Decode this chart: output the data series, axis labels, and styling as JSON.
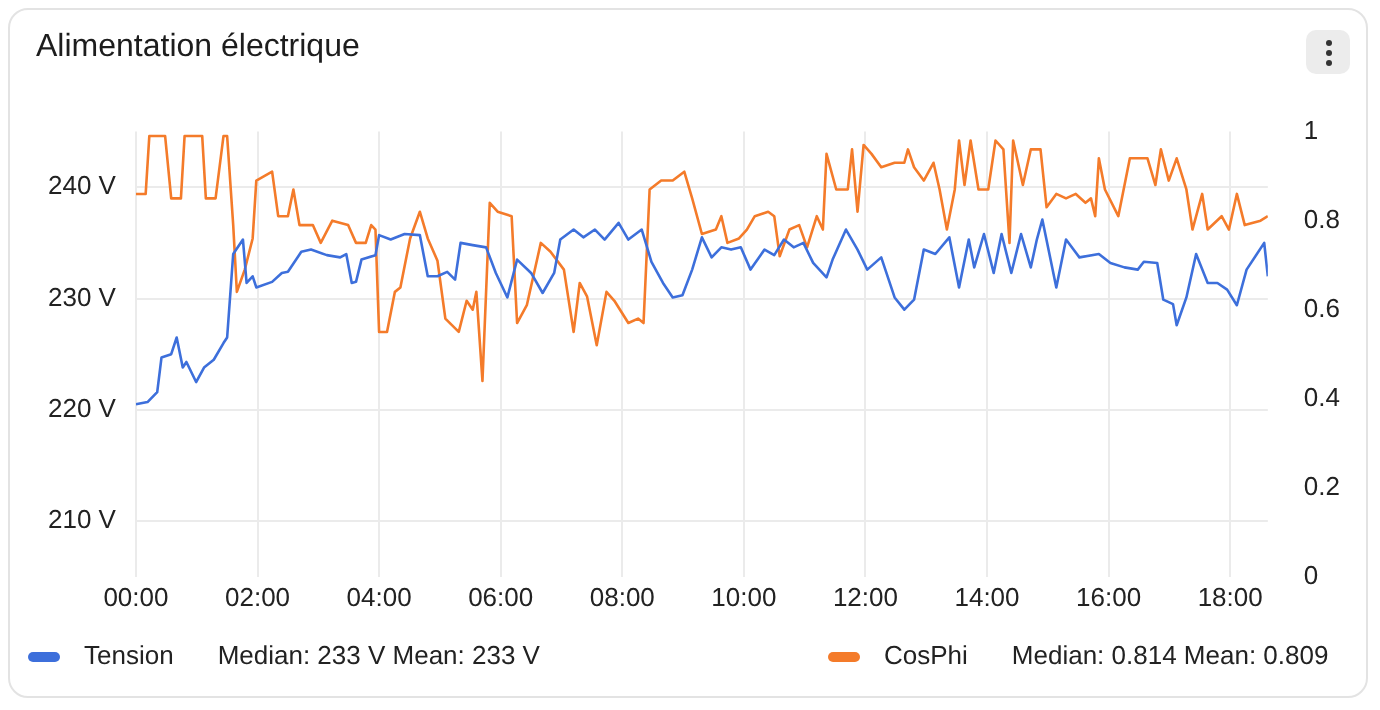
{
  "chart_data": {
    "type": "line",
    "title": "Alimentation électrique",
    "xlim": [
      0,
      18.62
    ],
    "xticks": [
      {
        "value": 0,
        "label": "00:00"
      },
      {
        "value": 2,
        "label": "02:00"
      },
      {
        "value": 4,
        "label": "04:00"
      },
      {
        "value": 6,
        "label": "06:00"
      },
      {
        "value": 8,
        "label": "08:00"
      },
      {
        "value": 10,
        "label": "10:00"
      },
      {
        "value": 12,
        "label": "12:00"
      },
      {
        "value": 14,
        "label": "14:00"
      },
      {
        "value": 16,
        "label": "16:00"
      },
      {
        "value": 18,
        "label": "18:00"
      }
    ],
    "ylim": [
      205,
      245
    ],
    "yticks": [
      {
        "value": 210,
        "label": "210 V"
      },
      {
        "value": 220,
        "label": "220 V"
      },
      {
        "value": 230,
        "label": "230 V"
      },
      {
        "value": 240,
        "label": "240 V"
      }
    ],
    "y2lim": [
      0,
      1
    ],
    "y2ticks": [
      0,
      0.2,
      0.4,
      0.6,
      0.8,
      1
    ],
    "grid": true,
    "legend": "bottom",
    "marker": "none",
    "line_style": "solid",
    "annotations": [
      "Median: 233 V  Mean: 233 V",
      "Median: 0.814  Mean: 0.809"
    ],
    "series": [
      {
        "name": "Tension",
        "color": "#3d6fdb",
        "x": [
          0,
          0.19,
          0.35,
          0.42,
          0.58,
          0.67,
          0.77,
          0.83,
          0.99,
          1.12,
          1.28,
          1.44,
          1.5,
          1.6,
          1.76,
          1.82,
          1.92,
          1.98,
          2.24,
          2.4,
          2.5,
          2.72,
          2.88,
          3.14,
          3.36,
          3.46,
          3.55,
          3.62,
          3.71,
          3.94,
          4,
          4.19,
          4.42,
          4.67,
          4.8,
          4.96,
          5.12,
          5.25,
          5.34,
          5.54,
          5.76,
          5.92,
          6.11,
          6.27,
          6.5,
          6.69,
          6.88,
          6.98,
          7.2,
          7.36,
          7.55,
          7.71,
          7.94,
          8.1,
          8.32,
          8.48,
          8.67,
          8.83,
          8.99,
          9.15,
          9.31,
          9.47,
          9.63,
          9.79,
          9.95,
          10.11,
          10.34,
          10.5,
          10.66,
          10.82,
          10.98,
          11.14,
          11.36,
          11.46,
          11.68,
          11.87,
          12.03,
          12.26,
          12.48,
          12.64,
          12.8,
          12.96,
          13.15,
          13.38,
          13.54,
          13.7,
          13.79,
          13.95,
          14.11,
          14.24,
          14.4,
          14.56,
          14.72,
          14.82,
          14.91,
          15.14,
          15.3,
          15.52,
          15.84,
          16.03,
          16.26,
          16.48,
          16.58,
          16.8,
          16.9,
          17.06,
          17.12,
          17.28,
          17.44,
          17.63,
          17.79,
          17.95,
          18.11,
          18.27,
          18.56,
          18.62
        ],
        "values": [
          220.5,
          220.7,
          221.6,
          224.7,
          225,
          226.5,
          223.8,
          224.3,
          222.5,
          223.8,
          224.5,
          226,
          226.5,
          234,
          235.3,
          231.4,
          232,
          231,
          231.5,
          232.3,
          232.4,
          234.2,
          234.4,
          233.9,
          233.7,
          234,
          231.4,
          231.5,
          233.5,
          233.9,
          235.7,
          235.3,
          235.8,
          235.7,
          232,
          232,
          232.4,
          231.7,
          235,
          234.8,
          234.6,
          232.3,
          230.1,
          233.5,
          232.3,
          230.5,
          232.3,
          235.3,
          236.2,
          235.5,
          236.2,
          235.3,
          236.8,
          235.3,
          236.2,
          233.3,
          231.4,
          230.1,
          230.3,
          232.6,
          235.5,
          233.7,
          234.6,
          234.4,
          234.6,
          232.6,
          234.4,
          233.9,
          235.3,
          234.6,
          235,
          233.2,
          231.9,
          233.5,
          236.2,
          234.4,
          232.6,
          233.7,
          230.1,
          229,
          229.9,
          234.4,
          234,
          235.5,
          231,
          235.3,
          232.8,
          235.8,
          232.3,
          235.8,
          232.3,
          235.8,
          232.8,
          235.3,
          237.1,
          231,
          235.3,
          233.7,
          234,
          233.2,
          232.8,
          232.6,
          233.3,
          233.2,
          229.9,
          229.5,
          227.6,
          230.1,
          234,
          231.4,
          231.4,
          230.8,
          229.4,
          232.6,
          235,
          232
        ]
      },
      {
        "name": "CosPhi",
        "color": "#f47b2a",
        "axis": "y2",
        "x": [
          0,
          0.16,
          0.22,
          0.48,
          0.58,
          0.74,
          0.8,
          1.09,
          1.15,
          1.31,
          1.44,
          1.5,
          1.6,
          1.66,
          1.79,
          1.92,
          1.98,
          2.24,
          2.34,
          2.5,
          2.59,
          2.69,
          2.91,
          3.04,
          3.23,
          3.49,
          3.62,
          3.78,
          3.87,
          3.94,
          4,
          4.13,
          4.26,
          4.35,
          4.51,
          4.67,
          4.8,
          4.96,
          5.09,
          5.31,
          5.44,
          5.54,
          5.6,
          5.7,
          5.82,
          5.95,
          6.18,
          6.27,
          6.43,
          6.66,
          6.82,
          7.04,
          7.2,
          7.3,
          7.42,
          7.58,
          7.74,
          7.87,
          8.1,
          8.26,
          8.35,
          8.45,
          8.64,
          8.83,
          9.02,
          9.15,
          9.31,
          9.54,
          9.63,
          9.73,
          9.92,
          10.05,
          10.18,
          10.4,
          10.5,
          10.59,
          10.75,
          10.91,
          11.04,
          11.2,
          11.3,
          11.36,
          11.52,
          11.71,
          11.78,
          11.87,
          11.97,
          12.1,
          12.26,
          12.48,
          12.64,
          12.7,
          12.8,
          12.96,
          13.12,
          13.22,
          13.34,
          13.47,
          13.54,
          13.63,
          13.73,
          13.86,
          14.02,
          14.14,
          14.27,
          14.37,
          14.43,
          14.59,
          14.72,
          14.88,
          14.98,
          15.14,
          15.3,
          15.46,
          15.62,
          15.71,
          15.78,
          15.84,
          15.94,
          16.16,
          16.35,
          16.64,
          16.77,
          16.86,
          16.99,
          17.12,
          17.28,
          17.38,
          17.54,
          17.63,
          17.86,
          17.98,
          18.11,
          18.24,
          18.5,
          18.62
        ],
        "values": [
          0.86,
          0.86,
          0.99,
          0.99,
          0.85,
          0.85,
          0.99,
          0.99,
          0.85,
          0.85,
          0.99,
          0.99,
          0.79,
          0.64,
          0.69,
          0.76,
          0.89,
          0.91,
          0.81,
          0.81,
          0.87,
          0.79,
          0.79,
          0.75,
          0.8,
          0.79,
          0.75,
          0.75,
          0.79,
          0.78,
          0.55,
          0.55,
          0.64,
          0.65,
          0.76,
          0.82,
          0.76,
          0.71,
          0.58,
          0.55,
          0.62,
          0.6,
          0.64,
          0.44,
          0.84,
          0.82,
          0.81,
          0.57,
          0.61,
          0.75,
          0.73,
          0.69,
          0.55,
          0.66,
          0.63,
          0.52,
          0.64,
          0.62,
          0.57,
          0.58,
          0.57,
          0.87,
          0.89,
          0.89,
          0.91,
          0.85,
          0.77,
          0.78,
          0.81,
          0.75,
          0.76,
          0.78,
          0.81,
          0.82,
          0.81,
          0.72,
          0.78,
          0.79,
          0.74,
          0.81,
          0.78,
          0.95,
          0.87,
          0.87,
          0.96,
          0.82,
          0.97,
          0.95,
          0.92,
          0.93,
          0.93,
          0.96,
          0.92,
          0.89,
          0.93,
          0.87,
          0.78,
          0.87,
          0.98,
          0.88,
          0.98,
          0.87,
          0.87,
          0.98,
          0.96,
          0.75,
          0.98,
          0.88,
          0.96,
          0.96,
          0.83,
          0.86,
          0.85,
          0.86,
          0.84,
          0.85,
          0.81,
          0.94,
          0.87,
          0.81,
          0.94,
          0.94,
          0.88,
          0.96,
          0.89,
          0.94,
          0.87,
          0.78,
          0.86,
          0.78,
          0.81,
          0.78,
          0.86,
          0.79,
          0.8,
          0.81
        ]
      }
    ]
  }
}
